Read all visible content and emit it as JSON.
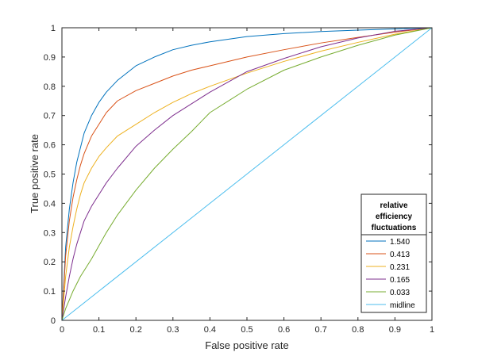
{
  "chart_data": {
    "type": "line",
    "title": "",
    "xlabel": "False positive rate",
    "ylabel": "True positive rate",
    "xlim": [
      0,
      1
    ],
    "ylim": [
      0,
      1
    ],
    "xticks": [
      "0",
      "0.1",
      "0.2",
      "0.3",
      "0.4",
      "0.5",
      "0.6",
      "0.7",
      "0.8",
      "0.9",
      "1"
    ],
    "yticks": [
      "0",
      "0.1",
      "0.2",
      "0.3",
      "0.4",
      "0.5",
      "0.6",
      "0.7",
      "0.8",
      "0.9",
      "1"
    ],
    "grid": false,
    "legend": {
      "title": [
        "relative",
        "efficiency",
        "fluctuations"
      ],
      "placement": "bottom-right"
    },
    "series": [
      {
        "name": "1.540",
        "color": "#0072BD",
        "x": [
          0,
          0.01,
          0.02,
          0.03,
          0.04,
          0.05,
          0.06,
          0.08,
          0.1,
          0.12,
          0.15,
          0.2,
          0.25,
          0.3,
          0.35,
          0.4,
          0.5,
          0.6,
          0.7,
          0.8,
          0.9,
          1.0
        ],
        "y": [
          0,
          0.25,
          0.38,
          0.47,
          0.54,
          0.59,
          0.64,
          0.7,
          0.745,
          0.78,
          0.82,
          0.87,
          0.9,
          0.925,
          0.94,
          0.952,
          0.97,
          0.98,
          0.987,
          0.992,
          0.996,
          1.0
        ]
      },
      {
        "name": "0.413",
        "color": "#D95319",
        "x": [
          0,
          0.01,
          0.02,
          0.03,
          0.04,
          0.05,
          0.06,
          0.08,
          0.1,
          0.12,
          0.15,
          0.2,
          0.25,
          0.3,
          0.35,
          0.4,
          0.5,
          0.6,
          0.7,
          0.8,
          0.9,
          1.0
        ],
        "y": [
          0,
          0.22,
          0.34,
          0.42,
          0.48,
          0.53,
          0.57,
          0.63,
          0.67,
          0.71,
          0.75,
          0.785,
          0.81,
          0.835,
          0.855,
          0.87,
          0.9,
          0.925,
          0.948,
          0.967,
          0.985,
          1.0
        ]
      },
      {
        "name": "0.231",
        "color": "#EDB120",
        "x": [
          0,
          0.01,
          0.02,
          0.03,
          0.04,
          0.05,
          0.06,
          0.08,
          0.1,
          0.12,
          0.15,
          0.2,
          0.25,
          0.3,
          0.35,
          0.4,
          0.5,
          0.6,
          0.7,
          0.8,
          0.9,
          1.0
        ],
        "y": [
          0,
          0.15,
          0.25,
          0.32,
          0.38,
          0.43,
          0.47,
          0.52,
          0.56,
          0.59,
          0.63,
          0.67,
          0.71,
          0.745,
          0.775,
          0.8,
          0.845,
          0.885,
          0.92,
          0.95,
          0.978,
          1.0
        ]
      },
      {
        "name": "0.165",
        "color": "#7E2F8E",
        "x": [
          0,
          0.01,
          0.02,
          0.03,
          0.04,
          0.05,
          0.06,
          0.08,
          0.1,
          0.12,
          0.15,
          0.2,
          0.25,
          0.3,
          0.35,
          0.4,
          0.5,
          0.6,
          0.7,
          0.8,
          0.9,
          1.0
        ],
        "y": [
          0,
          0.08,
          0.15,
          0.21,
          0.26,
          0.3,
          0.34,
          0.39,
          0.43,
          0.47,
          0.52,
          0.595,
          0.65,
          0.7,
          0.74,
          0.78,
          0.85,
          0.895,
          0.935,
          0.965,
          0.988,
          1.0
        ]
      },
      {
        "name": "0.033",
        "color": "#77AC30",
        "x": [
          0,
          0.01,
          0.02,
          0.03,
          0.04,
          0.05,
          0.06,
          0.08,
          0.1,
          0.12,
          0.15,
          0.2,
          0.25,
          0.3,
          0.35,
          0.4,
          0.5,
          0.6,
          0.7,
          0.8,
          0.9,
          1.0
        ],
        "y": [
          0,
          0.04,
          0.07,
          0.1,
          0.125,
          0.15,
          0.17,
          0.21,
          0.255,
          0.3,
          0.36,
          0.445,
          0.52,
          0.585,
          0.645,
          0.71,
          0.79,
          0.855,
          0.9,
          0.94,
          0.975,
          1.0
        ]
      },
      {
        "name": "midline",
        "color": "#4DBEEE",
        "x": [
          0,
          1
        ],
        "y": [
          0,
          1
        ]
      }
    ]
  }
}
